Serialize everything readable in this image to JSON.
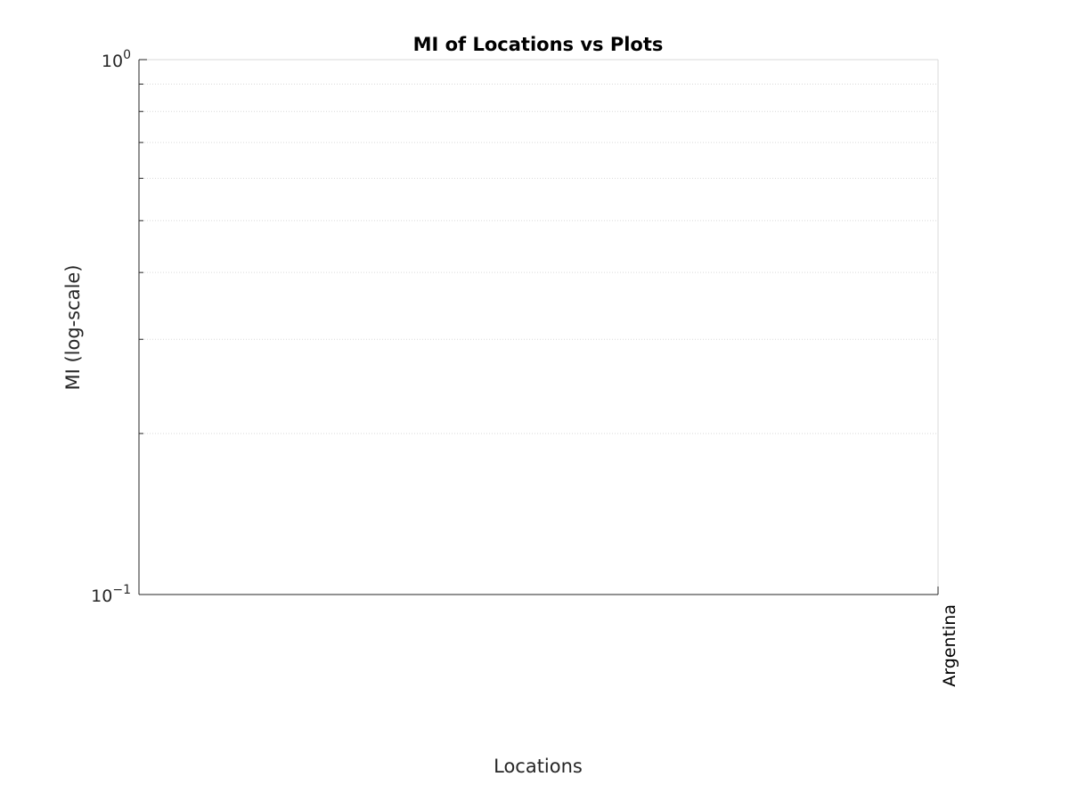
{
  "chart_data": {
    "type": "scatter",
    "title": "MI of Locations vs Plots",
    "xlabel": "Locations",
    "ylabel": "MI (log-scale)",
    "yscale": "log",
    "ylim": [
      0.1,
      1
    ],
    "y_ticks": [
      {
        "value": 1,
        "base": "10",
        "exponent": "0"
      },
      {
        "value": 0.1,
        "base": "10",
        "exponent": "−1"
      }
    ],
    "categories": [
      "Argentina"
    ],
    "series": [],
    "grid": {
      "y_minor": true,
      "x": false
    },
    "colors": {
      "axis": "#262626",
      "grid": "#d9d9d9"
    }
  }
}
